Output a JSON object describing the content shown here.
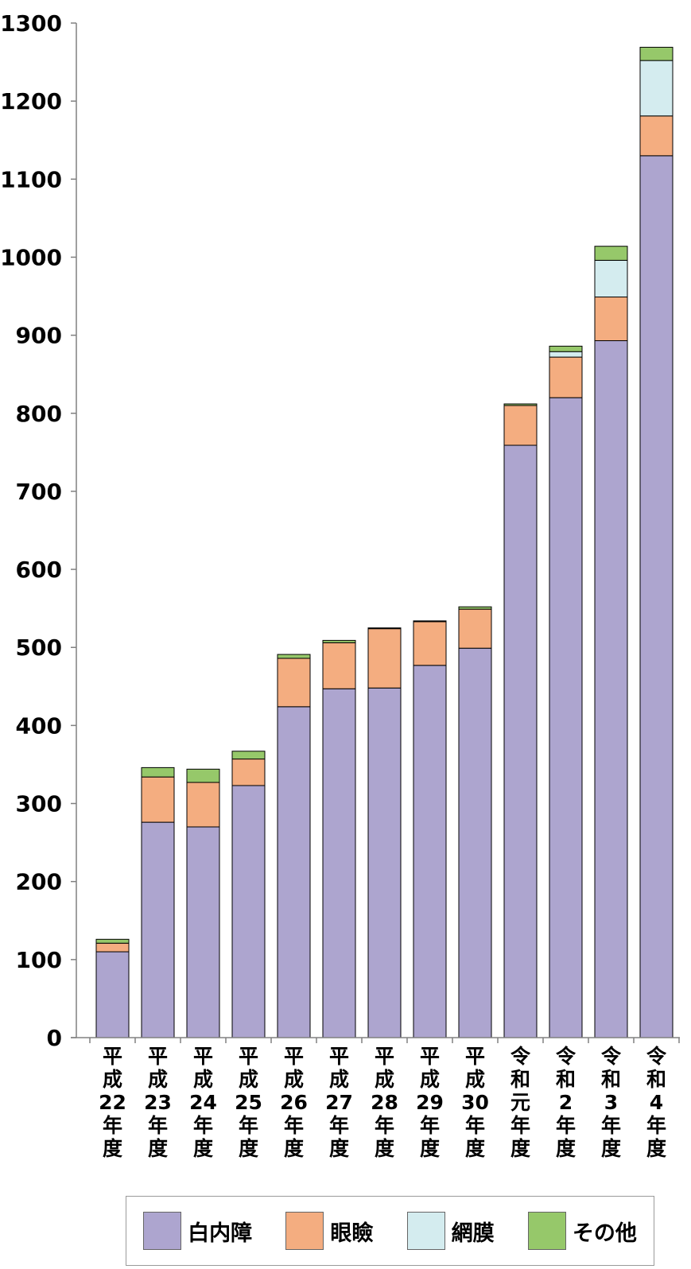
{
  "chart_data": {
    "type": "bar",
    "stacked": true,
    "categories": [
      [
        "平",
        "成",
        "22",
        "年",
        "度"
      ],
      [
        "平",
        "成",
        "23",
        "年",
        "度"
      ],
      [
        "平",
        "成",
        "24",
        "年",
        "度"
      ],
      [
        "平",
        "成",
        "25",
        "年",
        "度"
      ],
      [
        "平",
        "成",
        "26",
        "年",
        "度"
      ],
      [
        "平",
        "成",
        "27",
        "年",
        "度"
      ],
      [
        "平",
        "成",
        "28",
        "年",
        "度"
      ],
      [
        "平",
        "成",
        "29",
        "年",
        "度"
      ],
      [
        "平",
        "成",
        "30",
        "年",
        "度"
      ],
      [
        "令",
        "和",
        "元",
        "年",
        "度"
      ],
      [
        "令",
        "和",
        "2",
        "年",
        "度"
      ],
      [
        "令",
        "和",
        "3",
        "年",
        "度"
      ],
      [
        "令",
        "和",
        "4",
        "年",
        "度"
      ]
    ],
    "series": [
      {
        "name": "白内障",
        "color": "#ada5cf",
        "values": [
          110,
          276,
          270,
          323,
          424,
          447,
          448,
          477,
          499,
          759,
          820,
          893,
          1130
        ]
      },
      {
        "name": "眼瞼",
        "color": "#f4ad80",
        "values": [
          11,
          58,
          57,
          34,
          62,
          59,
          76,
          56,
          50,
          51,
          52,
          56,
          51
        ]
      },
      {
        "name": "網膜",
        "color": "#d4ecef",
        "values": [
          0,
          0,
          0,
          0,
          0,
          0,
          0,
          0,
          0,
          0,
          7,
          47,
          71
        ]
      },
      {
        "name": "その他",
        "color": "#96c86a",
        "values": [
          5,
          12,
          17,
          10,
          5,
          3,
          1,
          1,
          3,
          2,
          7,
          18,
          17
        ]
      }
    ],
    "ylim": [
      0,
      1300
    ],
    "yticks": [
      0,
      100,
      200,
      300,
      400,
      500,
      600,
      700,
      800,
      900,
      1000,
      1100,
      1200,
      1300
    ],
    "grid": false,
    "legend_position": "bottom"
  }
}
